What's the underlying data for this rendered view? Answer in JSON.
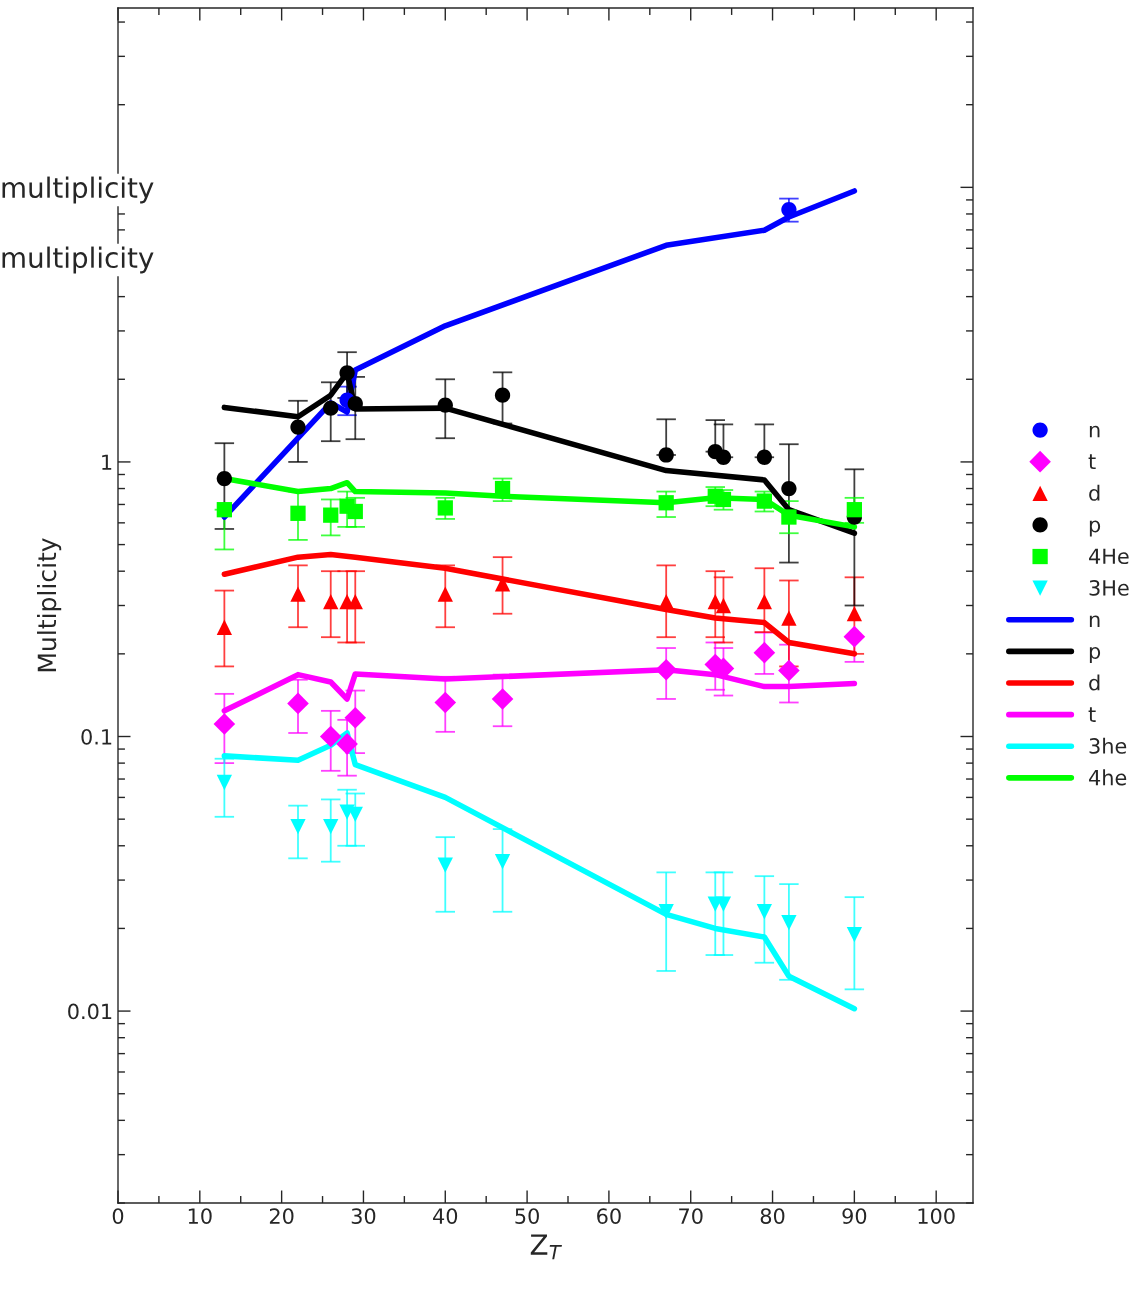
{
  "chart_data": {
    "type": "scatter",
    "xlabel": "Z$_{T}$",
    "ylabel": "Multiplicity",
    "annotations": [
      "multiplicity",
      "multiplicity"
    ],
    "log": "y",
    "xlim": [
      0,
      104.5
    ],
    "ylim": [
      0.002,
      45
    ],
    "xticks": [
      0,
      10,
      20,
      30,
      40,
      50,
      60,
      70,
      80,
      90,
      100
    ],
    "yticks": [
      0.01,
      0.1,
      1,
      {
        "value": 10,
        "label": null
      }
    ],
    "grid": false,
    "legend": "right",
    "series": [
      {
        "name": "n",
        "marker": "circle",
        "color": "#0000ff",
        "x": [
          28,
          82
        ],
        "values": [
          1.68,
          8.3
        ],
        "errors": [
          0.2,
          [
            7.5,
            9.1
          ]
        ]
      },
      {
        "name": "t",
        "marker": "diamond",
        "color": "#ff00ff",
        "x": [
          13,
          22,
          26,
          28,
          29,
          40,
          47,
          67,
          73,
          74,
          79,
          82,
          90
        ],
        "values": [
          0.111,
          0.132,
          0.1,
          0.094,
          0.117,
          0.133,
          0.137,
          0.175,
          0.183,
          0.177,
          0.202,
          0.174,
          0.231
        ],
        "errors": [
          [
            0.08,
            0.143
          ],
          [
            0.103,
            0.161
          ],
          [
            0.075,
            0.124
          ],
          [
            0.072,
            0.115
          ],
          [
            0.087,
            0.147
          ],
          [
            0.104,
            0.165
          ],
          [
            0.109,
            0.168
          ],
          [
            0.137,
            0.21
          ],
          [
            0.148,
            0.22
          ],
          [
            0.141,
            0.21
          ],
          [
            0.169,
            0.239
          ],
          [
            0.133,
            0.216
          ],
          [
            0.187,
            0.231
          ]
        ]
      },
      {
        "name": "d",
        "marker": "triangle",
        "color": "#ff0000",
        "x": [
          13,
          22,
          26,
          28,
          29,
          40,
          47,
          67,
          73,
          74,
          79,
          82,
          90
        ],
        "values": [
          0.25,
          0.33,
          0.31,
          0.31,
          0.31,
          0.33,
          0.36,
          0.31,
          0.31,
          0.3,
          0.31,
          0.27,
          0.28
        ],
        "errors": [
          [
            0.18,
            0.34
          ],
          [
            0.25,
            0.42
          ],
          [
            0.23,
            0.4
          ],
          [
            0.22,
            0.4
          ],
          [
            0.22,
            0.4
          ],
          [
            0.25,
            0.42
          ],
          [
            0.28,
            0.45
          ],
          [
            0.23,
            0.42
          ],
          [
            0.23,
            0.4
          ],
          [
            0.22,
            0.38
          ],
          [
            0.24,
            0.41
          ],
          [
            0.18,
            0.37
          ],
          [
            0.2,
            0.38
          ]
        ]
      },
      {
        "name": "p",
        "marker": "circle",
        "color": "#000000",
        "x": [
          13,
          22,
          26,
          28,
          29,
          40,
          47,
          67,
          73,
          74,
          79,
          82,
          90
        ],
        "values": [
          0.87,
          1.34,
          1.57,
          2.11,
          1.63,
          1.61,
          1.75,
          1.06,
          1.09,
          1.04,
          1.04,
          0.8,
          0.63
        ],
        "errors": [
          [
            0.57,
            1.17
          ],
          [
            1.0,
            1.67
          ],
          [
            1.19,
            1.95
          ],
          [
            1.71,
            2.51
          ],
          [
            1.21,
            2.04
          ],
          [
            1.22,
            2.0
          ],
          [
            1.38,
            2.12
          ],
          [
            1.06,
            1.43
          ],
          [
            1.09,
            1.42
          ],
          [
            1.04,
            1.37
          ],
          [
            1.04,
            1.37
          ],
          [
            0.43,
            1.16
          ],
          [
            0.3,
            0.94
          ]
        ]
      },
      {
        "name": "4He",
        "marker": "square",
        "color": "#00ff00",
        "x": [
          13,
          22,
          26,
          28,
          29,
          40,
          47,
          67,
          73,
          74,
          79,
          82,
          90
        ],
        "values": [
          0.67,
          0.65,
          0.64,
          0.69,
          0.66,
          0.68,
          0.8,
          0.71,
          0.75,
          0.73,
          0.72,
          0.63,
          0.67
        ],
        "errors": [
          [
            0.48,
            0.67
          ],
          [
            0.52,
            0.78
          ],
          [
            0.54,
            0.73
          ],
          [
            0.58,
            0.78
          ],
          [
            0.58,
            0.74
          ],
          [
            0.62,
            0.74
          ],
          [
            0.72,
            0.87
          ],
          [
            0.63,
            0.78
          ],
          [
            0.69,
            0.81
          ],
          [
            0.67,
            0.79
          ],
          [
            0.66,
            0.78
          ],
          [
            0.55,
            0.72
          ],
          [
            0.6,
            0.74
          ]
        ]
      },
      {
        "name": "3He",
        "marker": "triangle_down",
        "color": "#00ffff",
        "x": [
          13,
          22,
          26,
          28,
          29,
          40,
          47,
          67,
          73,
          74,
          79,
          82,
          90
        ],
        "values": [
          0.068,
          0.047,
          0.047,
          0.053,
          0.052,
          0.034,
          0.035,
          0.023,
          0.0245,
          0.0245,
          0.023,
          0.021,
          0.019
        ],
        "errors": [
          [
            0.051,
            0.083
          ],
          [
            0.036,
            0.056
          ],
          [
            0.035,
            0.059
          ],
          [
            0.04,
            0.064
          ],
          [
            0.04,
            0.062
          ],
          [
            0.023,
            0.043
          ],
          [
            0.023,
            0.046
          ],
          [
            0.014,
            0.032
          ],
          [
            0.016,
            0.032
          ],
          [
            0.016,
            0.032
          ],
          [
            0.015,
            0.031
          ],
          [
            0.013,
            0.029
          ],
          [
            0.012,
            0.026
          ]
        ]
      },
      {
        "name": "n",
        "type": "line",
        "marker": "none",
        "color": "#0000ff",
        "x": [
          13,
          26,
          28,
          29,
          40,
          67,
          79,
          82,
          90
        ],
        "values": [
          0.63,
          1.64,
          1.52,
          2.16,
          3.13,
          6.15,
          6.98,
          7.8,
          9.7
        ]
      },
      {
        "name": "p",
        "type": "line",
        "marker": "none",
        "color": "#000000",
        "x": [
          13,
          22,
          26,
          28,
          29,
          40,
          67,
          79,
          82,
          90
        ],
        "values": [
          1.58,
          1.46,
          1.75,
          2.11,
          1.56,
          1.57,
          0.93,
          0.86,
          0.67,
          0.55
        ]
      },
      {
        "name": "d",
        "type": "line",
        "marker": "none",
        "color": "#ff0000",
        "x": [
          13,
          22,
          26,
          29,
          40,
          67,
          73,
          79,
          82,
          90
        ],
        "values": [
          0.39,
          0.45,
          0.46,
          0.45,
          0.41,
          0.29,
          0.27,
          0.26,
          0.22,
          0.2
        ]
      },
      {
        "name": "t",
        "type": "line",
        "marker": "none",
        "color": "#ff00ff",
        "x": [
          13,
          22,
          26,
          28,
          29,
          40,
          67,
          73,
          79,
          82,
          90
        ],
        "values": [
          0.124,
          0.168,
          0.158,
          0.137,
          0.169,
          0.162,
          0.175,
          0.168,
          0.152,
          0.152,
          0.156
        ]
      },
      {
        "name": "3he",
        "type": "line",
        "marker": "none",
        "color": "#00ffff",
        "x": [
          13,
          22,
          26,
          28,
          29,
          40,
          67,
          73,
          79,
          82,
          90
        ],
        "values": [
          0.085,
          0.082,
          0.093,
          0.103,
          0.079,
          0.06,
          0.0225,
          0.02,
          0.0186,
          0.0134,
          0.0102
        ]
      },
      {
        "name": "4he",
        "type": "line",
        "marker": "none",
        "color": "#00ff00",
        "x": [
          13,
          22,
          26,
          28,
          29,
          40,
          47,
          67,
          73,
          79,
          82,
          90
        ],
        "values": [
          0.87,
          0.78,
          0.8,
          0.84,
          0.78,
          0.77,
          0.75,
          0.71,
          0.74,
          0.73,
          0.64,
          0.58
        ]
      }
    ]
  }
}
